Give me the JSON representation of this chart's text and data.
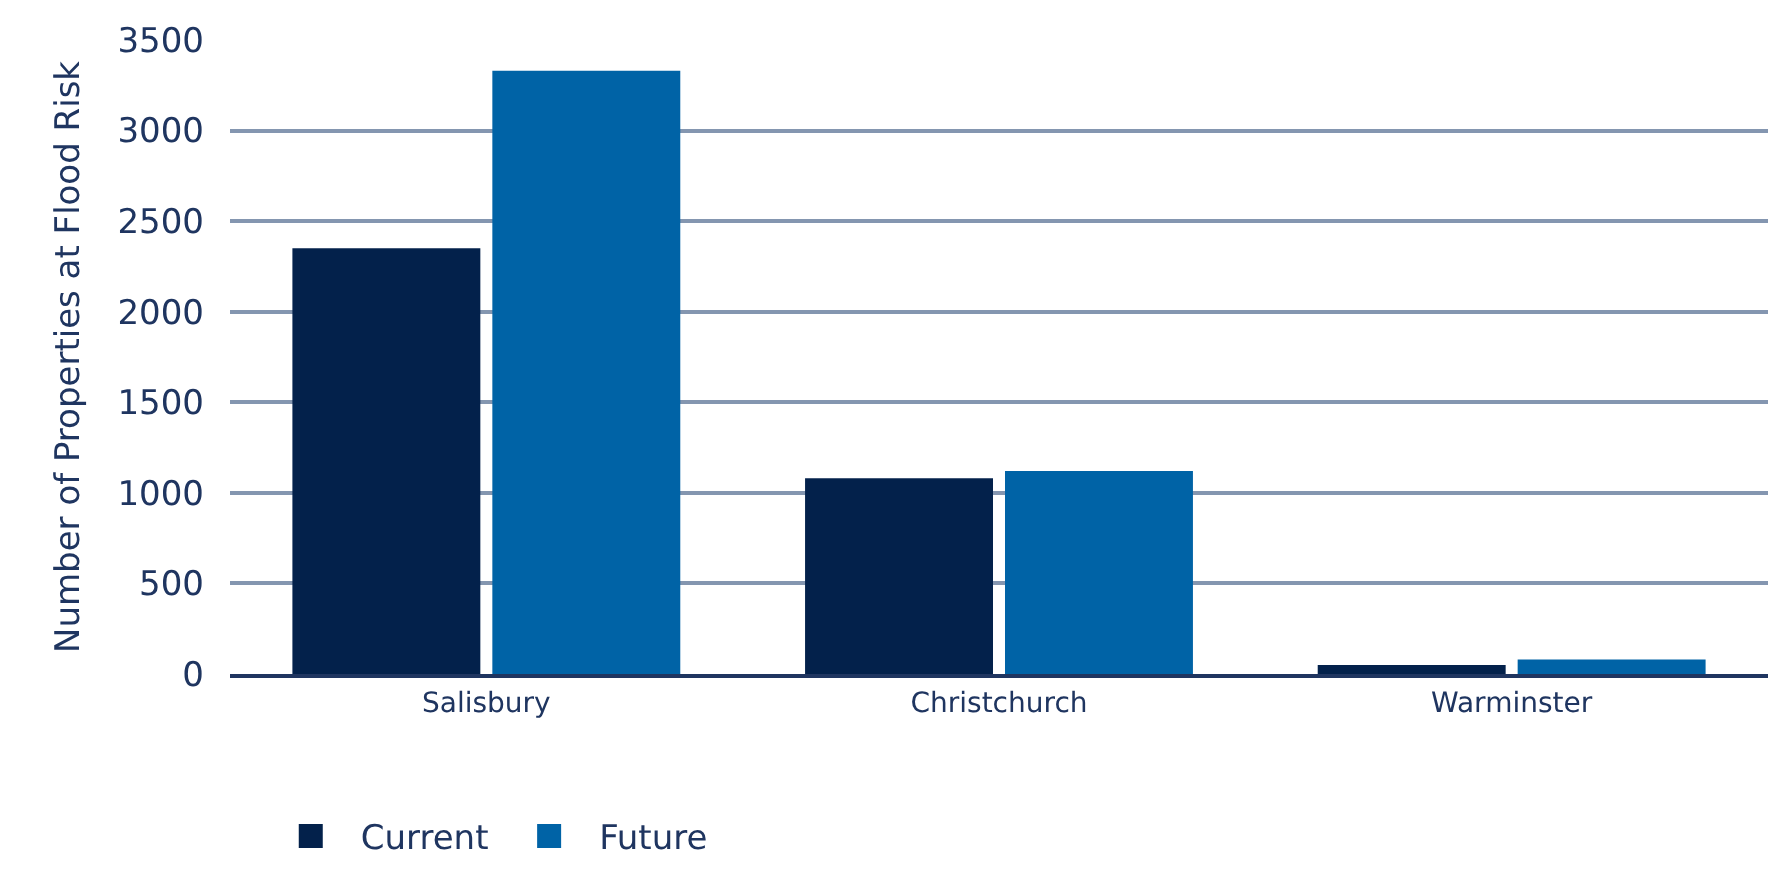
{
  "chart_data": {
    "type": "bar",
    "ylabel": "Number of Properties at Flood Risk",
    "categories": [
      "Salisbury",
      "Christchurch",
      "Warminster"
    ],
    "series": [
      {
        "name": "Current",
        "color": "#03214b",
        "values": [
          2350,
          1080,
          50
        ]
      },
      {
        "name": "Future",
        "color": "#0063a6",
        "values": [
          3330,
          1120,
          80
        ]
      }
    ],
    "ylim": [
      0,
      3500
    ],
    "yticks": [
      0,
      500,
      1000,
      1500,
      2000,
      2500,
      3000,
      3500
    ],
    "grid": "y",
    "legend": "bottom left"
  }
}
